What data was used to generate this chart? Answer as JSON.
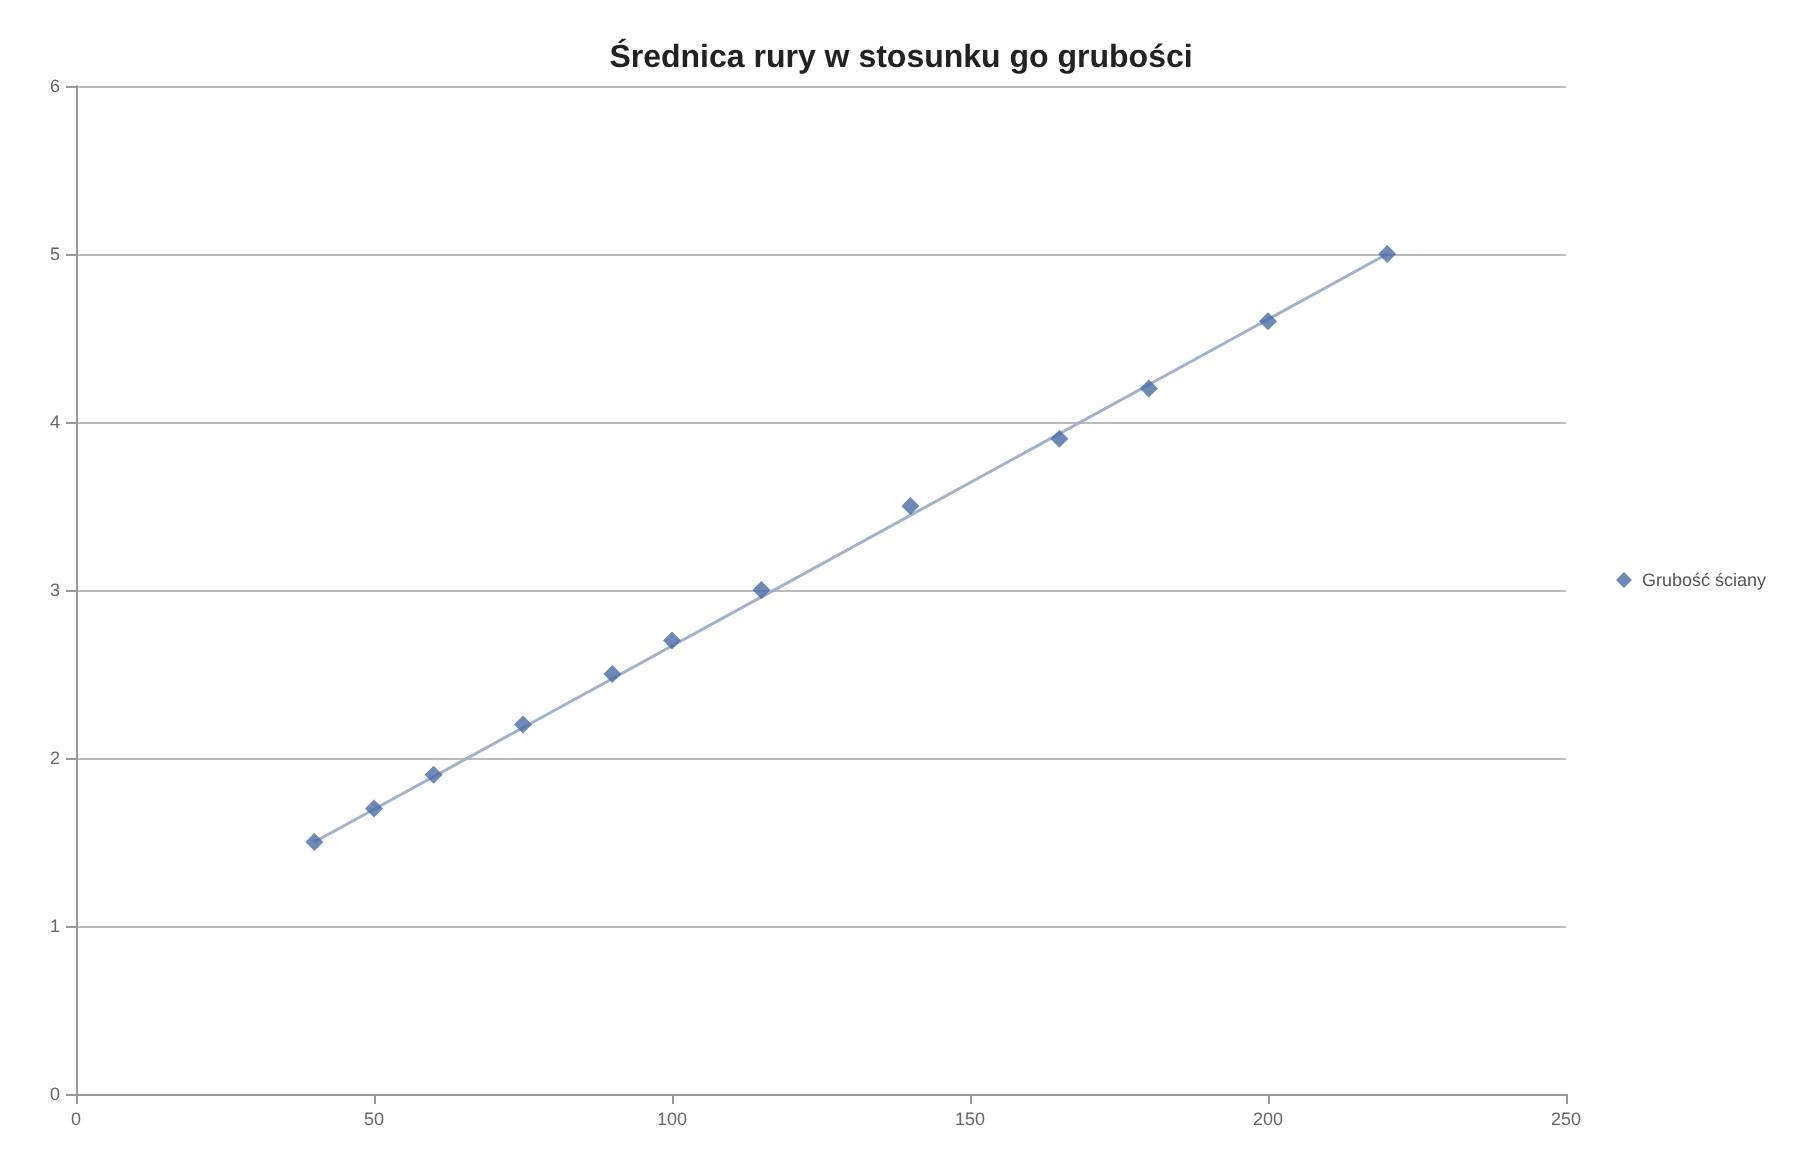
{
  "chart_data": {
    "type": "scatter",
    "title": "Średnica rury w stosunku go grubości",
    "series": [
      {
        "name": "Grubość ściany",
        "color": "#4a6aa5",
        "marker": "diamond",
        "x": [
          40,
          50,
          60,
          75,
          90,
          100,
          115,
          140,
          165,
          180,
          200,
          220
        ],
        "values": [
          1.5,
          1.7,
          1.9,
          2.2,
          2.5,
          2.7,
          3.0,
          3.5,
          3.9,
          4.2,
          4.6,
          5.0
        ]
      },
      {
        "type": "line",
        "color": "#9fb3cc",
        "marker": "none",
        "line_style": "solid",
        "x": [
          40,
          220
        ],
        "values": [
          1.5,
          5.0
        ]
      }
    ],
    "xlim": [
      0,
      250
    ],
    "xticks": [
      0,
      50,
      100,
      150,
      200,
      250
    ],
    "ylim": [
      0,
      6
    ],
    "yticks": [
      0,
      1,
      2,
      3,
      4,
      5,
      6
    ],
    "grid": "y",
    "legend": "right"
  }
}
